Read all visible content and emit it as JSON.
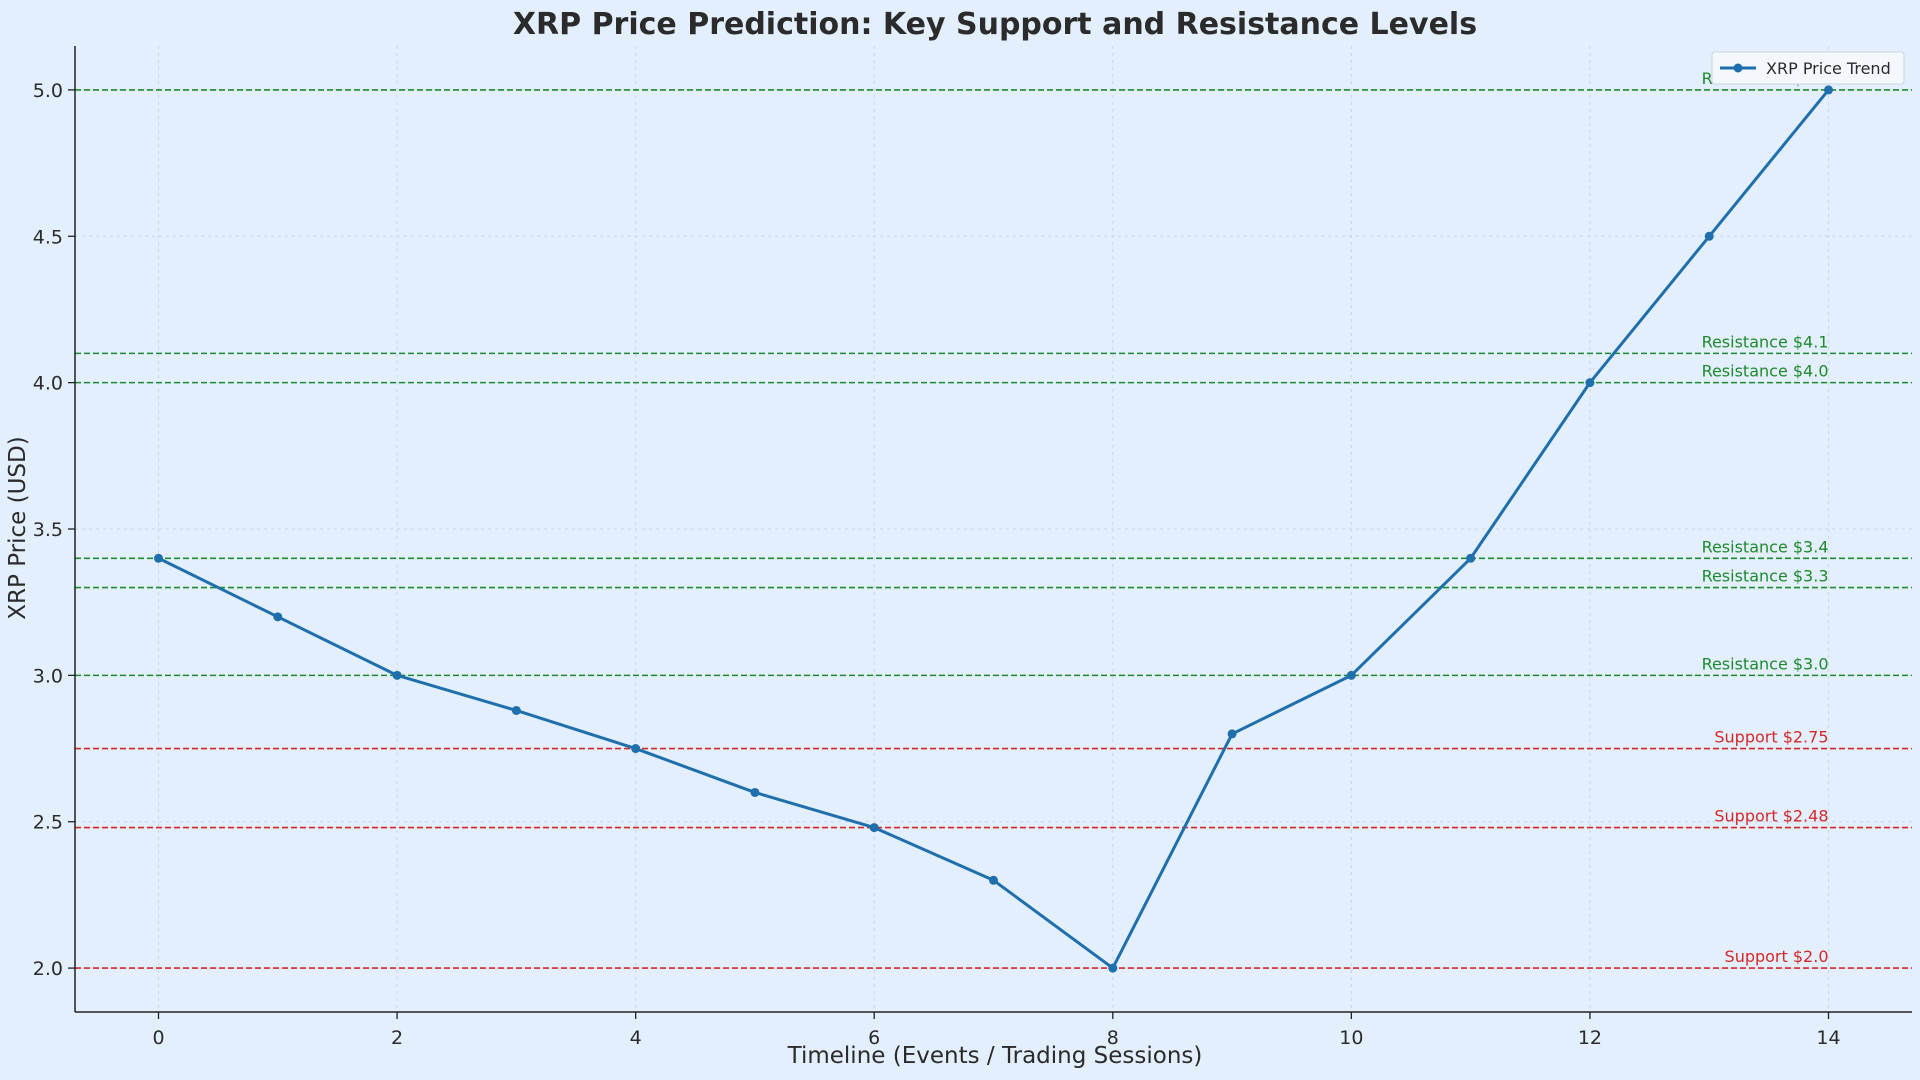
{
  "chart_data": {
    "type": "line",
    "title": "XRP Price Prediction: Key Support and Resistance Levels",
    "xlabel": "Timeline (Events / Trading Sessions)",
    "ylabel": "XRP Price (USD)",
    "xlim": [
      -0.7,
      14.7
    ],
    "ylim": [
      1.85,
      5.15
    ],
    "x_ticks": [
      0,
      2,
      4,
      6,
      8,
      10,
      12,
      14
    ],
    "y_ticks": [
      2.0,
      2.5,
      3.0,
      3.5,
      4.0,
      4.5,
      5.0
    ],
    "grid": true,
    "legend_position": "top-right",
    "series": [
      {
        "name": "XRP Price Trend",
        "color": "#1f6fad",
        "x": [
          0,
          1,
          2,
          3,
          4,
          5,
          6,
          7,
          8,
          9,
          10,
          11,
          12,
          13,
          14
        ],
        "values": [
          3.4,
          3.2,
          3.0,
          2.88,
          2.75,
          2.6,
          2.48,
          2.3,
          2.0,
          2.8,
          3.0,
          3.4,
          4.0,
          4.5,
          5.0
        ]
      }
    ],
    "levels": [
      {
        "type": "resistance",
        "value": 5.0,
        "label": "Resistance $5.0",
        "color": "#1e8a2e"
      },
      {
        "type": "resistance",
        "value": 4.1,
        "label": "Resistance $4.1",
        "color": "#1e8a2e"
      },
      {
        "type": "resistance",
        "value": 4.0,
        "label": "Resistance $4.0",
        "color": "#1e8a2e"
      },
      {
        "type": "resistance",
        "value": 3.4,
        "label": "Resistance $3.4",
        "color": "#1e8a2e"
      },
      {
        "type": "resistance",
        "value": 3.3,
        "label": "Resistance $3.3",
        "color": "#1e8a2e"
      },
      {
        "type": "resistance",
        "value": 3.0,
        "label": "Resistance $3.0",
        "color": "#1e8a2e"
      },
      {
        "type": "support",
        "value": 2.75,
        "label": "Support $2.75",
        "color": "#d62728"
      },
      {
        "type": "support",
        "value": 2.48,
        "label": "Support $2.48",
        "color": "#d62728"
      },
      {
        "type": "support",
        "value": 2.0,
        "label": "Support $2.0",
        "color": "#d62728"
      }
    ]
  }
}
